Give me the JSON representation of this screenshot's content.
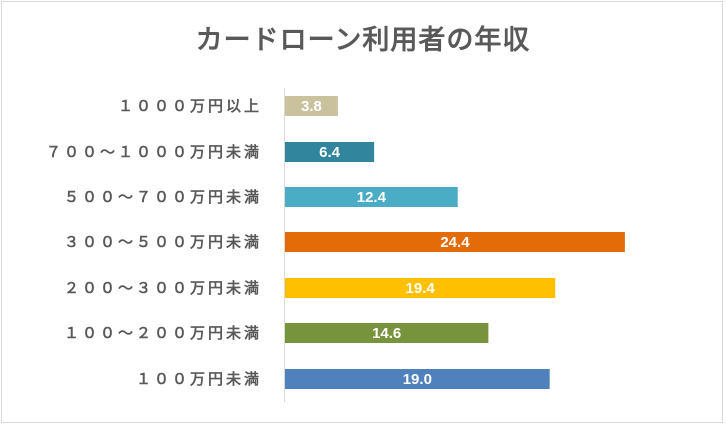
{
  "chart_data": {
    "type": "bar",
    "orientation": "horizontal",
    "title": "カードローン利用者の年収",
    "categories": [
      "１０００万円以上",
      "７００～１０００万円未満",
      "５００～７００万円未満",
      "３００～５００万円未満",
      "２００～３００万円未満",
      "１００～２００万円未満",
      "１００万円未満"
    ],
    "values": [
      3.8,
      6.4,
      12.4,
      24.4,
      19.4,
      14.6,
      19.0
    ],
    "value_labels": [
      "3.8",
      "6.4",
      "12.4",
      "24.4",
      "19.4",
      "14.6",
      "19.0"
    ],
    "colors": [
      "#c9c29d",
      "#31859c",
      "#4bacc6",
      "#e36c09",
      "#ffc000",
      "#77933c",
      "#4f81bd"
    ],
    "xlim": [
      0,
      25
    ],
    "grid": false,
    "legend": "none"
  }
}
